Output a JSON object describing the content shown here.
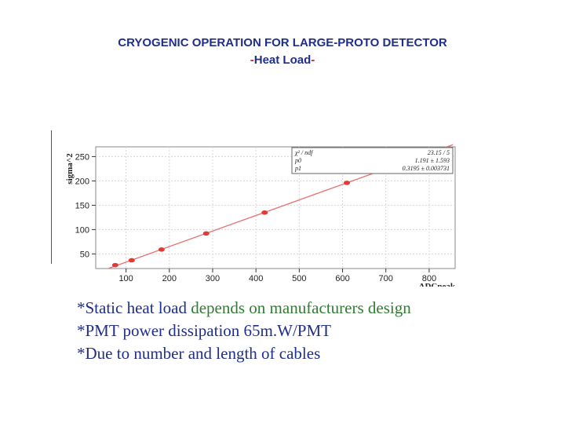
{
  "slide": {
    "title_line1": "CRYOGENIC OPERATION FOR LARGE-PROTO DETECTOR",
    "title_line2_dash_left": "-",
    "title_line2_text": "Heat Load",
    "title_line2_dash_right": "-"
  },
  "bullets": [
    {
      "prefix": "*Static heat load ",
      "rest": "depends on manufacturers design"
    },
    {
      "prefix": "*PMT power dissipation 65m.W/PMT",
      "rest": ""
    },
    {
      "prefix": "*Due to number and length of cables",
      "rest": ""
    }
  ],
  "colors": {
    "title": "#1f2e8a",
    "bullet_blue": "#1f2e8a",
    "bullet_green": "#2e7d32",
    "points": "#e53935",
    "fit": "#e57373"
  },
  "chart_data": {
    "type": "scatter",
    "title": "",
    "xlabel": "ADCpeak",
    "ylabel": "sigma^2",
    "xlim": [
      30,
      860
    ],
    "ylim": [
      20,
      270
    ],
    "xticks": [
      100,
      200,
      300,
      400,
      500,
      600,
      700,
      800
    ],
    "yticks": [
      50,
      100,
      150,
      200,
      250
    ],
    "grid": true,
    "x": [
      75,
      113,
      182,
      285,
      420,
      610,
      780
    ],
    "y": [
      27,
      37,
      59,
      92,
      135,
      196,
      250
    ],
    "fit": {
      "slope": 0.3195,
      "intercept": 1.191
    },
    "stats_box": {
      "rows": [
        {
          "label": "χ² / ndf",
          "value": "23.15 / 5"
        },
        {
          "label": "p0",
          "value": "1.191 ± 1.593"
        },
        {
          "label": "p1",
          "value": "0.3195 ± 0.003731"
        }
      ]
    }
  }
}
